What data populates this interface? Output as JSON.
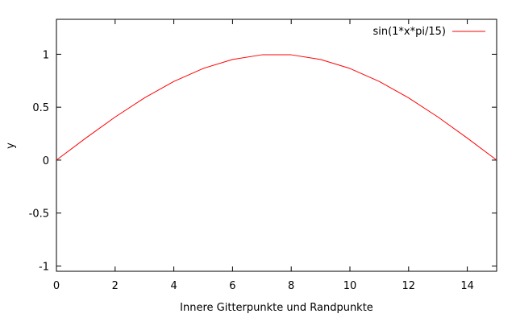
{
  "chart_data": {
    "type": "line",
    "title": "",
    "xlabel": "Innere Gitterpunkte und Randpunkte",
    "ylabel": "y",
    "xlim": [
      0,
      15
    ],
    "ylim": [
      -1.05,
      1.33
    ],
    "x_ticks": [
      0,
      2,
      4,
      6,
      8,
      10,
      12,
      14
    ],
    "x_tick_labels": [
      "0",
      "2",
      "4",
      "6",
      "8",
      "10",
      "12",
      "14"
    ],
    "y_ticks": [
      -1,
      -0.5,
      0,
      0.5,
      1
    ],
    "y_tick_labels": [
      "-1",
      "-0.5",
      "0",
      "0.5",
      "1"
    ],
    "grid": false,
    "legend_position": "top-right",
    "series": [
      {
        "name": "sin(1*x*pi/15)",
        "color": "#ff0000",
        "x": [
          0,
          1,
          2,
          3,
          4,
          5,
          6,
          7,
          8,
          9,
          10,
          11,
          12,
          13,
          14,
          15
        ],
        "y": [
          0,
          0.208,
          0.407,
          0.588,
          0.743,
          0.866,
          0.951,
          0.995,
          0.995,
          0.951,
          0.866,
          0.743,
          0.588,
          0.407,
          0.208,
          0
        ]
      }
    ]
  }
}
